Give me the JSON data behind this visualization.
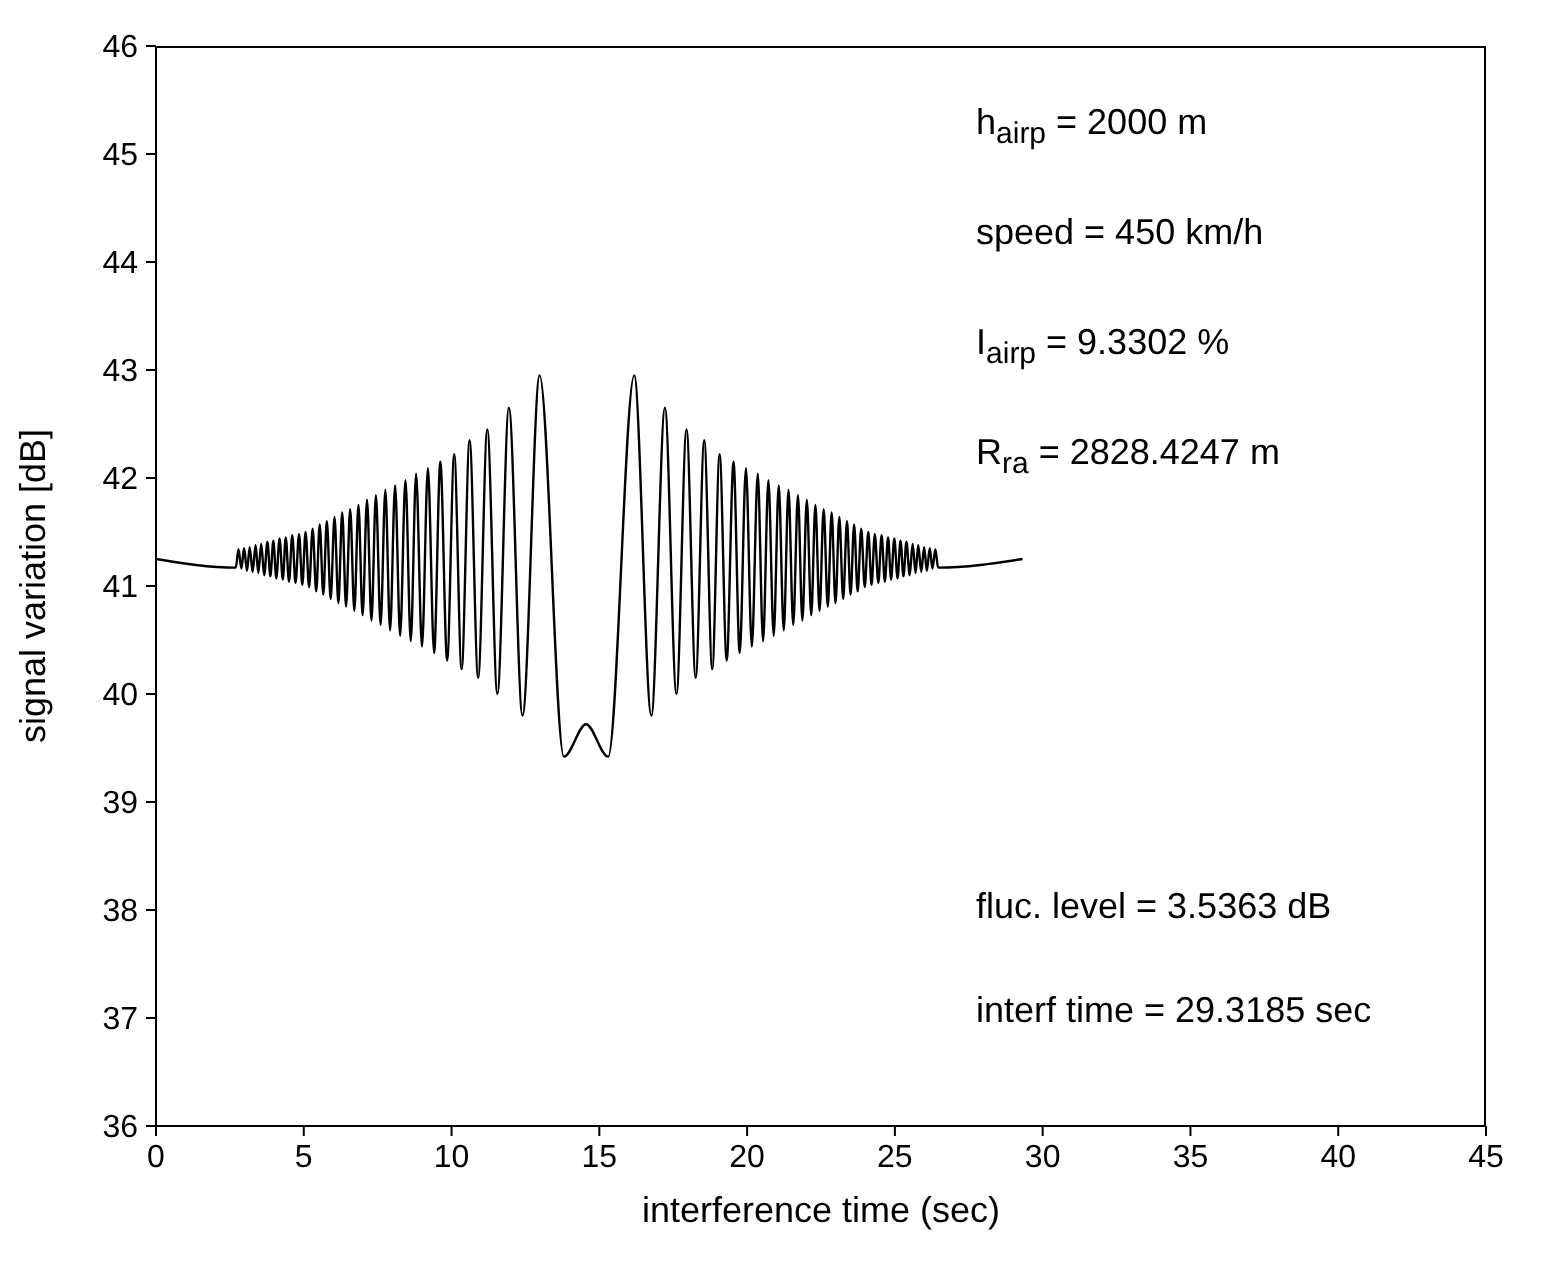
{
  "chart_data": {
    "type": "line",
    "xlabel": "interference time (sec)",
    "ylabel": "signal variation  [dB]",
    "xlim": [
      0,
      45
    ],
    "ylim": [
      36,
      46
    ],
    "xticks": [
      0,
      5,
      10,
      15,
      20,
      25,
      30,
      35,
      40,
      45
    ],
    "yticks": [
      36,
      37,
      38,
      39,
      40,
      41,
      42,
      43,
      44,
      45,
      46
    ],
    "annotations": [
      "h$_{airp}$ = 2000 m",
      "speed = 450 km/h",
      "I$_{airp}$ = 9.3302 %",
      "R$_{ra}$ = 2828.4247 m",
      "fluc. level = 3.5363 dB",
      "interf time = 29.3185 sec"
    ],
    "series": [
      {
        "color": "#000000",
        "x": [
          0,
          2.7,
          2.79,
          2.89,
          2.98,
          3.08,
          3.17,
          3.27,
          3.37,
          3.46,
          3.56,
          3.66,
          3.77,
          3.87,
          3.97,
          4.07,
          4.18,
          4.29,
          4.39,
          4.5,
          4.61,
          4.72,
          4.84,
          4.95,
          5.06,
          5.18,
          5.3,
          5.42,
          5.54,
          5.66,
          5.78,
          5.91,
          6.04,
          6.17,
          6.3,
          6.43,
          6.57,
          6.71,
          6.85,
          6.99,
          7.14,
          7.29,
          7.44,
          7.6,
          7.76,
          7.92,
          8.09,
          8.26,
          8.44,
          8.62,
          8.8,
          9.0,
          9.2,
          9.41,
          9.62,
          9.85,
          10.09,
          10.34,
          10.61,
          10.9,
          11.21,
          11.55,
          11.94,
          12.4,
          12.98,
          13.8,
          14.55,
          15.3,
          16.18,
          16.76,
          17.22,
          17.61,
          17.95,
          18.26,
          18.55,
          18.82,
          19.07,
          19.31,
          19.54,
          19.75,
          19.96,
          20.16,
          20.36,
          20.54,
          20.72,
          20.9,
          21.07,
          21.24,
          21.4,
          21.56,
          21.72,
          21.87,
          22.02,
          22.17,
          22.31,
          22.45,
          22.59,
          22.73,
          22.86,
          22.99,
          23.12,
          23.25,
          23.38,
          23.5,
          23.62,
          23.74,
          23.86,
          23.98,
          24.1,
          24.21,
          24.32,
          24.44,
          24.55,
          24.66,
          24.77,
          24.87,
          24.98,
          25.09,
          25.19,
          25.29,
          25.39,
          25.5,
          25.6,
          25.7,
          25.79,
          25.89,
          25.99,
          26.08,
          26.18,
          26.27,
          26.37,
          26.46,
          29.32
        ],
        "values": [
          41.25,
          41.17,
          41.34,
          41.16,
          41.35,
          41.14,
          41.36,
          41.13,
          41.38,
          41.12,
          41.39,
          41.1,
          41.41,
          41.09,
          41.42,
          41.07,
          41.44,
          41.06,
          41.45,
          41.04,
          41.47,
          41.03,
          41.48,
          41.01,
          41.5,
          40.99,
          41.53,
          40.95,
          41.57,
          40.92,
          41.6,
          40.88,
          41.64,
          40.84,
          41.68,
          40.81,
          41.71,
          40.77,
          41.75,
          40.73,
          41.8,
          40.68,
          41.84,
          40.64,
          41.89,
          40.59,
          41.93,
          40.54,
          41.98,
          40.49,
          42.04,
          40.44,
          42.09,
          40.38,
          42.15,
          40.31,
          42.22,
          40.23,
          42.35,
          40.15,
          42.45,
          40.0,
          42.65,
          39.8,
          42.95,
          39.42,
          39.72,
          39.42,
          42.95,
          39.8,
          42.65,
          40.0,
          42.45,
          40.15,
          42.35,
          40.23,
          42.22,
          40.31,
          42.15,
          40.38,
          42.09,
          40.44,
          42.04,
          40.49,
          41.98,
          40.54,
          41.93,
          40.59,
          41.89,
          40.64,
          41.84,
          40.68,
          41.8,
          40.73,
          41.75,
          40.77,
          41.71,
          40.81,
          41.68,
          40.84,
          41.64,
          40.88,
          41.6,
          40.92,
          41.57,
          40.95,
          41.53,
          40.99,
          41.5,
          41.01,
          41.48,
          41.03,
          41.47,
          41.04,
          41.45,
          41.06,
          41.44,
          41.07,
          41.42,
          41.09,
          41.41,
          41.1,
          41.39,
          41.12,
          41.38,
          41.13,
          41.36,
          41.14,
          41.35,
          41.16,
          41.34,
          41.17,
          41.25
        ]
      }
    ]
  }
}
